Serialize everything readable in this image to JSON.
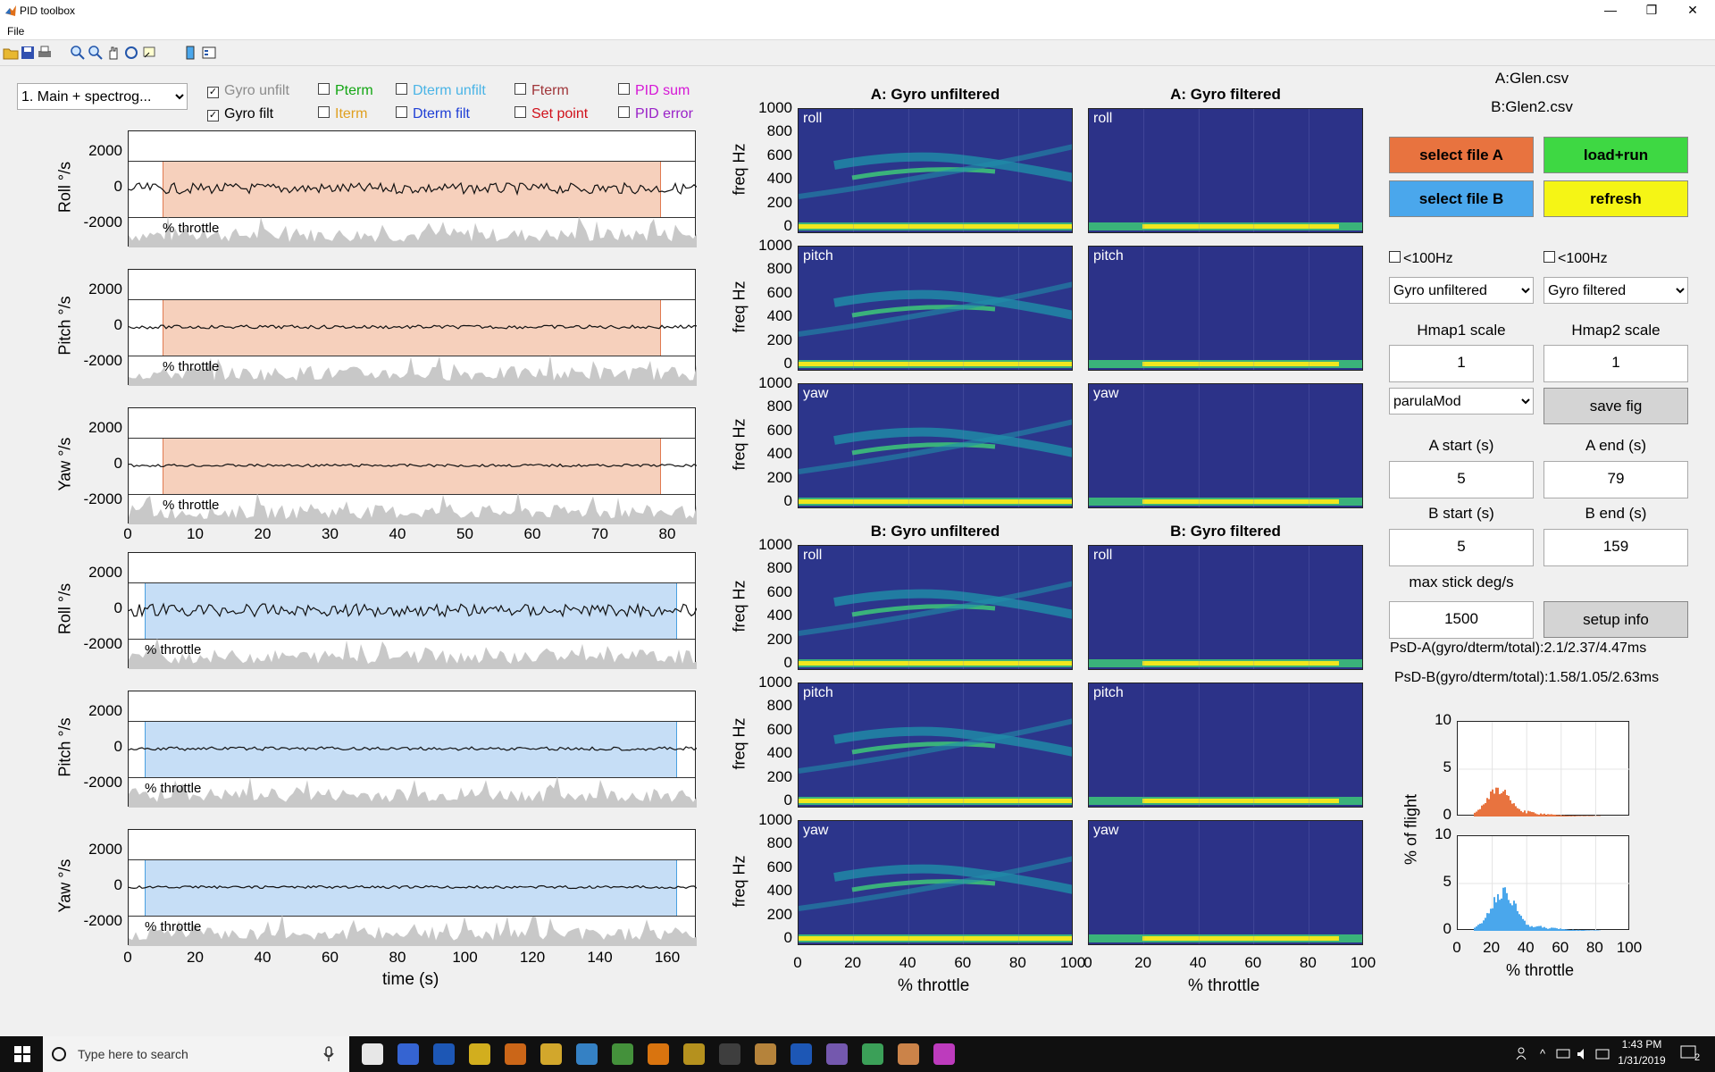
{
  "window": {
    "title": "PID toolbox",
    "minimize": "—",
    "maximize": "❐",
    "close": "✕"
  },
  "menu": {
    "file": "File"
  },
  "toolbar": {
    "icons": [
      "open-icon",
      "save-icon",
      "print-icon",
      "zoom-in-icon",
      "zoom-out-icon",
      "pan-icon",
      "rotate-icon",
      "data-cursor-icon",
      "colorbar-icon",
      "legend-icon"
    ]
  },
  "view_select": {
    "value": "1. Main + spectrog..."
  },
  "checkboxes": [
    {
      "label": "Gyro unfilt",
      "checked": true,
      "color": "#8c8c8c"
    },
    {
      "label": "Pterm",
      "checked": false,
      "color": "#13a613"
    },
    {
      "label": "Dterm unfilt",
      "checked": false,
      "color": "#4ab4e6"
    },
    {
      "label": "Fterm",
      "checked": false,
      "color": "#a0363a"
    },
    {
      "label": "PID sum",
      "checked": false,
      "color": "#d617d6"
    },
    {
      "label": "Gyro filt",
      "checked": true,
      "color": "#000000"
    },
    {
      "label": "Iterm",
      "checked": false,
      "color": "#e0a020"
    },
    {
      "label": "Dterm filt",
      "checked": false,
      "color": "#1f3fd6"
    },
    {
      "label": "Set point",
      "checked": false,
      "color": "#d0101a"
    },
    {
      "label": "PID error",
      "checked": false,
      "color": "#9a22c8"
    }
  ],
  "time_plots": {
    "y_ticks": [
      "2000",
      "0",
      "-2000"
    ],
    "throttle_label": "% throttle",
    "plots": [
      {
        "ylabel": "Roll °/s",
        "group": "A"
      },
      {
        "ylabel": "Pitch °/s",
        "group": "A"
      },
      {
        "ylabel": "Yaw °/s",
        "group": "A"
      },
      {
        "ylabel": "Roll °/s",
        "group": "B"
      },
      {
        "ylabel": "Pitch °/s",
        "group": "B"
      },
      {
        "ylabel": "Yaw °/s",
        "group": "B"
      }
    ],
    "x_ticks_A": [
      "0",
      "10",
      "20",
      "30",
      "40",
      "50",
      "60",
      "70",
      "80"
    ],
    "x_ticks_B": [
      "0",
      "20",
      "40",
      "60",
      "80",
      "100",
      "120",
      "140",
      "160"
    ],
    "xlabel": "time (s)",
    "colors": {
      "A_span": "#f6d0bc",
      "B_span": "#c6def6",
      "A_span_edge": "#e07a50",
      "B_span_edge": "#4aa0e0"
    }
  },
  "spectrograms": {
    "titles": [
      "A: Gyro unfiltered",
      "A: Gyro filtered",
      "B: Gyro unfiltered",
      "B: Gyro filtered"
    ],
    "axes": [
      "roll",
      "pitch",
      "yaw"
    ],
    "y_ticks": [
      "1000",
      "800",
      "600",
      "400",
      "200",
      "0"
    ],
    "ylabel": "freq Hz",
    "x_ticks": [
      "0",
      "20",
      "40",
      "60",
      "80",
      "100"
    ],
    "xlabel": "% throttle",
    "colors": {
      "bg": "#2b2f84",
      "mid": "#1f8ea8",
      "high": "#3cc079",
      "peak": "#f0e71e"
    }
  },
  "files": {
    "a": "A:Glen.csv",
    "b": "B:Glen2.csv"
  },
  "buttons": {
    "select_a": {
      "label": "select file A",
      "color": "#e8733f"
    },
    "load_run": {
      "label": "load+run",
      "color": "#3ed843"
    },
    "select_b": {
      "label": "select file B",
      "color": "#4aa7ec"
    },
    "refresh": {
      "label": "refresh",
      "color": "#f5f515"
    },
    "save_fig": {
      "label": "save fig"
    },
    "setup_info": {
      "label": "setup info"
    }
  },
  "filters": {
    "lt100_1": {
      "label": "<100Hz",
      "checked": false
    },
    "lt100_2": {
      "label": "<100Hz",
      "checked": false
    },
    "hmap1_source": "Gyro unfiltered",
    "hmap2_source": "Gyro filtered",
    "colormap": "parulaMod"
  },
  "fields": {
    "hmap1_label": "Hmap1 scale",
    "hmap1": "1",
    "hmap2_label": "Hmap2 scale",
    "hmap2": "1",
    "a_start_label": "A start (s)",
    "a_start": "5",
    "a_end_label": "A end (s)",
    "a_end": "79",
    "b_start_label": "B start (s)",
    "b_start": "5",
    "b_end_label": "B end (s)",
    "b_end": "159",
    "max_stick_label": "max stick deg/s",
    "max_stick": "1500"
  },
  "psd": {
    "a": "PsD-A(gyro/dterm/total):2.1/2.37/4.47ms",
    "b": "PsD-B(gyro/dterm/total):1.58/1.05/2.63ms"
  },
  "histograms": {
    "ylabel": "% of flight",
    "xlabel": "% throttle",
    "y_ticks": [
      "10",
      "5",
      "0"
    ],
    "x_ticks": [
      "0",
      "20",
      "40",
      "60",
      "80",
      "100"
    ],
    "colors": {
      "A": "#e8733f",
      "B": "#4aa7ec"
    }
  },
  "taskbar": {
    "search_placeholder": "Type here to search",
    "time": "1:43 PM",
    "date": "1/31/2019",
    "notifications": "2",
    "apps": [
      "task-view-icon",
      "app-s-icon",
      "outlook-icon",
      "chrome-icon",
      "matlab-icon",
      "file-explorer-icon",
      "app-icon",
      "notepad-icon",
      "vlc-icon",
      "app-icon",
      "terminal-icon",
      "app-icon",
      "powershell-icon",
      "app-icon",
      "app-icon",
      "app-icon",
      "maps-icon"
    ]
  }
}
